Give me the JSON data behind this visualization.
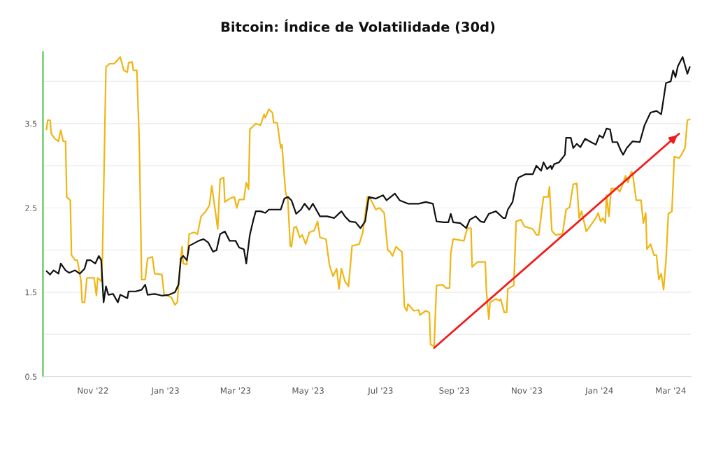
{
  "chart_data": {
    "type": "line",
    "title": "Bitcoin: Índice de Volatilidade (30d)",
    "xlim": [
      "2022-09-20",
      "2024-03-18"
    ],
    "ylim": [
      0.5,
      4.35
    ],
    "xticks": [
      {
        "value": "2022-11-01",
        "label": "Nov '22"
      },
      {
        "value": "2023-01-01",
        "label": "Jan '23"
      },
      {
        "value": "2023-03-01",
        "label": "Mar '23"
      },
      {
        "value": "2023-05-01",
        "label": "May '23"
      },
      {
        "value": "2023-07-01",
        "label": "Jul '23"
      },
      {
        "value": "2023-09-01",
        "label": "Sep '23"
      },
      {
        "value": "2023-11-01",
        "label": "Nov '23"
      },
      {
        "value": "2024-01-01",
        "label": "Jan '24"
      },
      {
        "value": "2024-03-01",
        "label": "Mar '24"
      }
    ],
    "yticks": [
      0.5,
      {
        "value": 1,
        "label": null
      },
      1.5,
      {
        "value": 2,
        "label": null
      },
      2.5,
      {
        "value": 3,
        "label": null
      },
      3.5,
      {
        "value": 4,
        "label": null
      }
    ],
    "grid": "y",
    "legend": false,
    "marker": "none",
    "line_style": "solid",
    "series": [
      {
        "color": "#f0b616",
        "x": [
          "2022-09-23",
          "2022-09-24",
          "2022-09-26",
          "2022-09-27",
          "2022-09-30",
          "2022-10-03",
          "2022-10-05",
          "2022-10-07",
          "2022-10-09",
          "2022-10-10",
          "2022-10-13",
          "2022-10-14",
          "2022-10-17",
          "2022-10-19",
          "2022-10-22",
          "2022-10-23",
          "2022-10-25",
          "2022-10-27",
          "2022-11-02",
          "2022-11-04",
          "2022-11-05",
          "2022-11-08",
          "2022-11-09",
          "2022-11-12",
          "2022-11-15",
          "2022-11-19",
          "2022-11-24",
          "2022-11-27",
          "2022-11-30",
          "2022-12-01",
          "2022-12-04",
          "2022-12-05",
          "2022-12-08",
          "2022-12-10",
          "2022-12-12",
          "2022-12-15",
          "2022-12-17",
          "2022-12-21",
          "2022-12-23",
          "2022-12-29",
          "2022-12-31",
          "2023-01-06",
          "2023-01-09",
          "2023-01-11",
          "2023-01-13",
          "2023-01-15",
          "2023-01-16",
          "2023-01-19",
          "2023-01-21",
          "2023-01-25",
          "2023-01-28",
          "2023-01-31",
          "2023-02-04",
          "2023-02-07",
          "2023-02-09",
          "2023-02-12",
          "2023-02-14",
          "2023-02-16",
          "2023-02-19",
          "2023-02-20",
          "2023-02-24",
          "2023-02-28",
          "2023-03-02",
          "2023-03-04",
          "2023-03-08",
          "2023-03-10",
          "2023-03-12",
          "2023-03-13",
          "2023-03-18",
          "2023-03-22",
          "2023-03-25",
          "2023-03-26",
          "2023-03-29",
          "2023-04-01",
          "2023-04-02",
          "2023-04-05",
          "2023-04-08",
          "2023-04-09",
          "2023-04-12",
          "2023-04-14",
          "2023-04-16",
          "2023-04-17",
          "2023-04-19",
          "2023-04-21",
          "2023-04-24",
          "2023-04-26",
          "2023-04-29",
          "2023-05-02",
          "2023-05-06",
          "2023-05-09",
          "2023-05-11",
          "2023-05-16",
          "2023-05-19",
          "2023-05-22",
          "2023-05-25",
          "2023-05-27",
          "2023-05-29",
          "2023-06-01",
          "2023-06-04",
          "2023-06-07",
          "2023-06-13",
          "2023-06-16",
          "2023-06-20",
          "2023-06-23",
          "2023-06-27",
          "2023-06-30",
          "2023-07-04",
          "2023-07-07",
          "2023-07-09",
          "2023-07-11",
          "2023-07-14",
          "2023-07-17",
          "2023-07-19",
          "2023-07-21",
          "2023-07-23",
          "2023-07-24",
          "2023-07-29",
          "2023-08-02",
          "2023-08-03",
          "2023-08-08",
          "2023-08-11",
          "2023-08-12",
          "2023-08-15",
          "2023-08-17",
          "2023-08-22",
          "2023-08-25",
          "2023-08-28",
          "2023-08-29",
          "2023-08-31",
          "2023-09-09",
          "2023-09-12",
          "2023-09-15",
          "2023-09-16",
          "2023-09-19",
          "2023-09-21",
          "2023-09-27",
          "2023-09-28",
          "2023-09-30",
          "2023-10-01",
          "2023-10-06",
          "2023-10-09",
          "2023-10-10",
          "2023-10-13",
          "2023-10-15",
          "2023-10-16",
          "2023-10-21",
          "2023-10-23",
          "2023-10-27",
          "2023-10-30",
          "2023-11-06",
          "2023-11-09",
          "2023-11-11",
          "2023-11-15",
          "2023-11-19",
          "2023-11-20",
          "2023-11-22",
          "2023-11-25",
          "2023-12-01",
          "2023-12-04",
          "2023-12-07",
          "2023-12-10",
          "2023-12-13",
          "2023-12-15",
          "2023-12-17",
          "2023-12-21",
          "2023-12-24",
          "2023-12-29",
          "2023-12-31",
          "2024-01-02",
          "2024-01-04",
          "2024-01-06",
          "2024-01-07",
          "2024-01-09",
          "2024-01-11",
          "2024-01-16",
          "2024-01-18",
          "2024-01-21",
          "2024-01-23",
          "2024-01-25",
          "2024-01-28",
          "2024-01-29",
          "2024-02-01",
          "2024-02-05",
          "2024-02-07",
          "2024-02-09",
          "2024-02-10",
          "2024-02-13",
          "2024-02-16",
          "2024-02-18",
          "2024-02-20",
          "2024-02-22",
          "2024-02-24",
          "2024-02-26",
          "2024-02-28",
          "2024-03-02",
          "2024-03-04",
          "2024-03-08",
          "2024-03-10",
          "2024-03-13",
          "2024-03-15",
          "2024-03-17"
        ],
        "values": [
          3.43,
          3.54,
          3.54,
          3.38,
          3.32,
          3.29,
          3.42,
          3.29,
          3.29,
          2.63,
          2.59,
          1.94,
          1.88,
          1.88,
          1.63,
          1.38,
          1.38,
          1.67,
          1.67,
          1.46,
          1.67,
          1.63,
          1.9,
          4.17,
          4.21,
          4.21,
          4.29,
          4.13,
          4.11,
          4.22,
          4.23,
          4.13,
          4.13,
          3.29,
          1.65,
          1.65,
          1.9,
          1.92,
          1.72,
          1.71,
          1.47,
          1.44,
          1.35,
          1.38,
          1.76,
          2.04,
          1.84,
          1.83,
          2.19,
          2.21,
          2.19,
          2.4,
          2.46,
          2.53,
          2.76,
          2.46,
          2.25,
          2.84,
          2.86,
          2.57,
          2.61,
          2.63,
          2.5,
          2.6,
          2.6,
          2.8,
          2.72,
          3.43,
          3.5,
          3.48,
          3.61,
          3.57,
          3.67,
          3.63,
          3.51,
          3.51,
          3.21,
          3.25,
          2.69,
          2.59,
          2.05,
          2.04,
          2.26,
          2.28,
          2.15,
          2.18,
          2.07,
          2.21,
          2.23,
          2.34,
          2.15,
          2.13,
          1.82,
          1.69,
          1.78,
          1.54,
          1.78,
          1.63,
          1.57,
          2.05,
          2.07,
          2.21,
          2.63,
          2.59,
          2.48,
          2.5,
          2.44,
          2.0,
          1.98,
          1.93,
          2.04,
          2.0,
          1.98,
          1.33,
          1.28,
          1.36,
          1.28,
          1.29,
          1.23,
          1.28,
          1.26,
          0.88,
          0.86,
          1.58,
          1.59,
          1.55,
          1.55,
          1.96,
          2.13,
          2.11,
          2.26,
          2.26,
          1.8,
          1.84,
          1.86,
          1.86,
          1.51,
          1.18,
          1.38,
          1.42,
          1.4,
          1.42,
          1.26,
          1.26,
          1.54,
          1.58,
          2.34,
          2.36,
          2.28,
          2.25,
          2.18,
          2.18,
          2.63,
          2.63,
          2.75,
          2.23,
          2.18,
          2.19,
          2.48,
          2.51,
          2.78,
          2.79,
          2.38,
          2.46,
          2.22,
          2.28,
          2.38,
          2.44,
          2.34,
          2.38,
          2.32,
          2.65,
          2.4,
          2.73,
          2.73,
          2.69,
          2.79,
          2.88,
          2.8,
          2.93,
          2.9,
          2.59,
          2.59,
          2.32,
          2.44,
          2.01,
          2.07,
          1.94,
          1.94,
          1.65,
          1.72,
          1.53,
          1.88,
          2.43,
          2.46,
          3.11,
          3.09,
          3.13,
          3.21,
          3.54,
          3.55
        ]
      },
      {
        "color": "#111111",
        "x": [
          "2022-09-23",
          "2022-09-26",
          "2022-09-29",
          "2022-10-03",
          "2022-10-05",
          "2022-10-09",
          "2022-10-12",
          "2022-10-17",
          "2022-10-21",
          "2022-10-25",
          "2022-10-27",
          "2022-10-30",
          "2022-11-03",
          "2022-11-06",
          "2022-11-08",
          "2022-11-10",
          "2022-11-12",
          "2022-11-14",
          "2022-11-18",
          "2022-11-22",
          "2022-11-24",
          "2022-11-30",
          "2022-12-01",
          "2022-12-07",
          "2022-12-12",
          "2022-12-15",
          "2022-12-17",
          "2022-12-23",
          "2022-12-29",
          "2023-01-04",
          "2023-01-09",
          "2023-01-12",
          "2023-01-14",
          "2023-01-16",
          "2023-01-19",
          "2023-01-21",
          "2023-01-29",
          "2023-02-02",
          "2023-02-06",
          "2023-02-10",
          "2023-02-13",
          "2023-02-16",
          "2023-02-20",
          "2023-02-24",
          "2023-03-01",
          "2023-03-04",
          "2023-03-08",
          "2023-03-10",
          "2023-03-13",
          "2023-03-16",
          "2023-03-18",
          "2023-03-22",
          "2023-03-26",
          "2023-03-29",
          "2023-04-01",
          "2023-04-08",
          "2023-04-11",
          "2023-04-14",
          "2023-04-17",
          "2023-04-21",
          "2023-04-25",
          "2023-04-28",
          "2023-05-02",
          "2023-05-05",
          "2023-05-11",
          "2023-05-17",
          "2023-05-23",
          "2023-05-29",
          "2023-06-01",
          "2023-06-05",
          "2023-06-10",
          "2023-06-14",
          "2023-06-18",
          "2023-06-21",
          "2023-06-27",
          "2023-07-03",
          "2023-07-06",
          "2023-07-13",
          "2023-07-17",
          "2023-07-24",
          "2023-08-02",
          "2023-08-08",
          "2023-08-14",
          "2023-08-17",
          "2023-08-23",
          "2023-08-27",
          "2023-08-29",
          "2023-08-31",
          "2023-09-06",
          "2023-09-11",
          "2023-09-14",
          "2023-09-19",
          "2023-09-23",
          "2023-09-26",
          "2023-09-30",
          "2023-10-06",
          "2023-10-12",
          "2023-10-14",
          "2023-10-16",
          "2023-10-20",
          "2023-10-23",
          "2023-10-25",
          "2023-10-31",
          "2023-11-06",
          "2023-11-09",
          "2023-11-13",
          "2023-11-15",
          "2023-11-18",
          "2023-11-21",
          "2023-11-22",
          "2023-11-24",
          "2023-11-28",
          "2023-12-03",
          "2023-12-04",
          "2023-12-08",
          "2023-12-10",
          "2023-12-13",
          "2023-12-16",
          "2023-12-20",
          "2023-12-25",
          "2023-12-29",
          "2024-01-01",
          "2024-01-04",
          "2024-01-07",
          "2024-01-10",
          "2024-01-12",
          "2024-01-16",
          "2024-01-19",
          "2024-01-21",
          "2024-01-24",
          "2024-01-29",
          "2024-02-04",
          "2024-02-08",
          "2024-02-13",
          "2024-02-18",
          "2024-02-22",
          "2024-02-26",
          "2024-03-01",
          "2024-03-03",
          "2024-03-05",
          "2024-03-07",
          "2024-03-11",
          "2024-03-15",
          "2024-03-17"
        ],
        "values": [
          1.75,
          1.71,
          1.76,
          1.72,
          1.84,
          1.76,
          1.73,
          1.76,
          1.72,
          1.78,
          1.88,
          1.88,
          1.84,
          1.93,
          1.88,
          1.38,
          1.57,
          1.47,
          1.48,
          1.38,
          1.47,
          1.43,
          1.51,
          1.51,
          1.53,
          1.59,
          1.47,
          1.48,
          1.46,
          1.47,
          1.5,
          1.59,
          1.9,
          1.93,
          1.88,
          2.05,
          2.11,
          2.13,
          2.09,
          1.98,
          2.0,
          2.19,
          2.22,
          2.11,
          2.11,
          2.03,
          2.01,
          1.84,
          2.18,
          2.36,
          2.46,
          2.46,
          2.44,
          2.48,
          2.48,
          2.48,
          2.61,
          2.63,
          2.59,
          2.43,
          2.48,
          2.55,
          2.48,
          2.55,
          2.4,
          2.4,
          2.38,
          2.46,
          2.4,
          2.34,
          2.33,
          2.26,
          2.34,
          2.63,
          2.61,
          2.65,
          2.59,
          2.67,
          2.59,
          2.55,
          2.55,
          2.57,
          2.55,
          2.34,
          2.33,
          2.33,
          2.43,
          2.33,
          2.32,
          2.26,
          2.36,
          2.4,
          2.34,
          2.33,
          2.43,
          2.46,
          2.38,
          2.38,
          2.48,
          2.57,
          2.79,
          2.86,
          2.9,
          2.9,
          3.0,
          2.94,
          3.04,
          2.96,
          3.0,
          2.96,
          3.02,
          3.04,
          3.13,
          3.33,
          3.33,
          3.21,
          3.26,
          3.22,
          3.32,
          3.28,
          3.25,
          3.36,
          3.33,
          3.44,
          3.43,
          3.28,
          3.28,
          3.18,
          3.13,
          3.21,
          3.29,
          3.28,
          3.48,
          3.63,
          3.65,
          3.61,
          3.98,
          4.0,
          4.13,
          4.05,
          4.18,
          4.29,
          4.09,
          4.17
        ]
      },
      {
        "type": "line",
        "color": "#f21c1c",
        "x": [
          "2023-08-15",
          "2024-03-08"
        ],
        "values": [
          0.84,
          3.38
        ]
      }
    ]
  }
}
